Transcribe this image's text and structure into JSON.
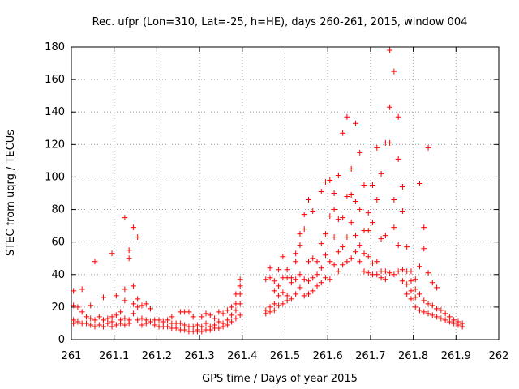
{
  "chart_data": {
    "type": "scatter",
    "title": "Rec. ufpr (Lon=310, Lat=-25, h=HE), days 260-261, 2015, window 004",
    "xlabel": "GPS time / Days of year 2015",
    "ylabel": "STEC from uqrg / TECUs",
    "xlim": [
      261,
      262
    ],
    "ylim": [
      0,
      180
    ],
    "xticks": [
      261,
      261.1,
      261.2,
      261.3,
      261.4,
      261.5,
      261.6,
      261.7,
      261.8,
      261.9,
      262
    ],
    "xtick_labels": [
      "261",
      "261.1",
      "261.2",
      "261.3",
      "261.4",
      "261.5",
      "261.6",
      "261.7",
      "261.8",
      "261.9",
      "262"
    ],
    "yticks": [
      0,
      20,
      40,
      60,
      80,
      100,
      120,
      140,
      160,
      180
    ],
    "ytick_labels": [
      "0",
      "20",
      "40",
      "60",
      "80",
      "100",
      "120",
      "140",
      "160",
      "180"
    ],
    "grid": true,
    "marker": "plus",
    "color": "#ff0000",
    "points": [
      [
        261.005,
        30
      ],
      [
        261.005,
        21
      ],
      [
        261.005,
        12
      ],
      [
        261.005,
        10
      ],
      [
        261.015,
        20
      ],
      [
        261.015,
        11
      ],
      [
        261.025,
        31
      ],
      [
        261.025,
        17
      ],
      [
        261.025,
        10
      ],
      [
        261.035,
        14
      ],
      [
        261.035,
        10
      ],
      [
        261.045,
        21
      ],
      [
        261.045,
        13
      ],
      [
        261.045,
        9
      ],
      [
        261.055,
        48
      ],
      [
        261.055,
        12
      ],
      [
        261.055,
        8
      ],
      [
        261.065,
        14
      ],
      [
        261.065,
        9
      ],
      [
        261.075,
        26
      ],
      [
        261.075,
        12
      ],
      [
        261.075,
        8
      ],
      [
        261.085,
        13
      ],
      [
        261.085,
        10
      ],
      [
        261.095,
        53
      ],
      [
        261.095,
        14
      ],
      [
        261.095,
        11
      ],
      [
        261.095,
        8
      ],
      [
        261.105,
        27
      ],
      [
        261.105,
        15
      ],
      [
        261.105,
        9
      ],
      [
        261.115,
        17
      ],
      [
        261.115,
        12
      ],
      [
        261.115,
        10
      ],
      [
        261.125,
        75
      ],
      [
        261.125,
        31
      ],
      [
        261.125,
        24
      ],
      [
        261.125,
        13
      ],
      [
        261.125,
        9
      ],
      [
        261.135,
        55
      ],
      [
        261.135,
        50
      ],
      [
        261.135,
        12
      ],
      [
        261.135,
        10
      ],
      [
        261.145,
        69
      ],
      [
        261.145,
        33
      ],
      [
        261.145,
        22
      ],
      [
        261.145,
        16
      ],
      [
        261.155,
        63
      ],
      [
        261.155,
        25
      ],
      [
        261.155,
        20
      ],
      [
        261.155,
        12
      ],
      [
        261.165,
        21
      ],
      [
        261.165,
        13
      ],
      [
        261.165,
        9
      ],
      [
        261.175,
        22
      ],
      [
        261.175,
        12
      ],
      [
        261.175,
        10
      ],
      [
        261.185,
        19
      ],
      [
        261.185,
        11
      ],
      [
        261.195,
        12
      ],
      [
        261.195,
        9
      ],
      [
        261.205,
        12
      ],
      [
        261.205,
        8
      ],
      [
        261.215,
        11
      ],
      [
        261.215,
        8
      ],
      [
        261.225,
        12
      ],
      [
        261.225,
        8
      ],
      [
        261.235,
        14
      ],
      [
        261.235,
        10
      ],
      [
        261.235,
        7
      ],
      [
        261.245,
        10
      ],
      [
        261.245,
        7
      ],
      [
        261.255,
        17
      ],
      [
        261.255,
        10
      ],
      [
        261.255,
        6
      ],
      [
        261.265,
        17
      ],
      [
        261.265,
        9
      ],
      [
        261.265,
        6
      ],
      [
        261.275,
        17
      ],
      [
        261.275,
        8
      ],
      [
        261.275,
        5
      ],
      [
        261.285,
        14
      ],
      [
        261.285,
        8
      ],
      [
        261.285,
        5
      ],
      [
        261.295,
        9
      ],
      [
        261.295,
        6
      ],
      [
        261.295,
        5
      ],
      [
        261.305,
        14
      ],
      [
        261.305,
        8
      ],
      [
        261.305,
        5
      ],
      [
        261.315,
        16
      ],
      [
        261.315,
        10
      ],
      [
        261.315,
        6
      ],
      [
        261.325,
        15
      ],
      [
        261.325,
        8
      ],
      [
        261.325,
        6
      ],
      [
        261.335,
        13
      ],
      [
        261.335,
        9
      ],
      [
        261.335,
        7
      ],
      [
        261.345,
        17
      ],
      [
        261.345,
        11
      ],
      [
        261.345,
        7
      ],
      [
        261.355,
        16
      ],
      [
        261.355,
        10
      ],
      [
        261.355,
        8
      ],
      [
        261.365,
        18
      ],
      [
        261.365,
        12
      ],
      [
        261.365,
        9
      ],
      [
        261.375,
        20
      ],
      [
        261.375,
        15
      ],
      [
        261.375,
        11
      ],
      [
        261.385,
        28
      ],
      [
        261.385,
        22
      ],
      [
        261.385,
        18
      ],
      [
        261.385,
        13
      ],
      [
        261.395,
        37
      ],
      [
        261.395,
        33
      ],
      [
        261.395,
        28
      ],
      [
        261.395,
        22
      ],
      [
        261.395,
        15
      ],
      [
        261.455,
        37
      ],
      [
        261.455,
        18
      ],
      [
        261.455,
        16
      ],
      [
        261.465,
        44
      ],
      [
        261.465,
        38
      ],
      [
        261.465,
        20
      ],
      [
        261.465,
        17
      ],
      [
        261.475,
        36
      ],
      [
        261.475,
        30
      ],
      [
        261.475,
        22
      ],
      [
        261.475,
        18
      ],
      [
        261.485,
        43
      ],
      [
        261.485,
        33
      ],
      [
        261.485,
        27
      ],
      [
        261.485,
        21
      ],
      [
        261.495,
        51
      ],
      [
        261.495,
        38
      ],
      [
        261.495,
        29
      ],
      [
        261.495,
        22
      ],
      [
        261.505,
        43
      ],
      [
        261.505,
        38
      ],
      [
        261.505,
        27
      ],
      [
        261.505,
        24
      ],
      [
        261.515,
        38
      ],
      [
        261.515,
        35
      ],
      [
        261.515,
        25
      ],
      [
        261.525,
        53
      ],
      [
        261.525,
        48
      ],
      [
        261.525,
        37
      ],
      [
        261.525,
        28
      ],
      [
        261.535,
        65
      ],
      [
        261.535,
        58
      ],
      [
        261.535,
        40
      ],
      [
        261.535,
        32
      ],
      [
        261.545,
        77
      ],
      [
        261.545,
        68
      ],
      [
        261.545,
        37
      ],
      [
        261.545,
        27
      ],
      [
        261.555,
        86
      ],
      [
        261.555,
        48
      ],
      [
        261.555,
        36
      ],
      [
        261.555,
        28
      ],
      [
        261.565,
        79
      ],
      [
        261.565,
        50
      ],
      [
        261.565,
        38
      ],
      [
        261.565,
        30
      ],
      [
        261.575,
        48
      ],
      [
        261.575,
        40
      ],
      [
        261.575,
        33
      ],
      [
        261.585,
        91
      ],
      [
        261.585,
        59
      ],
      [
        261.585,
        44
      ],
      [
        261.585,
        35
      ],
      [
        261.595,
        97
      ],
      [
        261.595,
        65
      ],
      [
        261.595,
        52
      ],
      [
        261.595,
        38
      ],
      [
        261.605,
        98
      ],
      [
        261.605,
        76
      ],
      [
        261.605,
        48
      ],
      [
        261.605,
        37
      ],
      [
        261.615,
        90
      ],
      [
        261.615,
        80
      ],
      [
        261.615,
        63
      ],
      [
        261.615,
        46
      ],
      [
        261.625,
        101
      ],
      [
        261.625,
        74
      ],
      [
        261.625,
        54
      ],
      [
        261.625,
        42
      ],
      [
        261.635,
        127
      ],
      [
        261.635,
        75
      ],
      [
        261.635,
        57
      ],
      [
        261.635,
        46
      ],
      [
        261.645,
        137
      ],
      [
        261.645,
        88
      ],
      [
        261.645,
        63
      ],
      [
        261.645,
        48
      ],
      [
        261.655,
        105
      ],
      [
        261.655,
        89
      ],
      [
        261.655,
        72
      ],
      [
        261.655,
        50
      ],
      [
        261.665,
        133
      ],
      [
        261.665,
        85
      ],
      [
        261.665,
        64
      ],
      [
        261.665,
        54
      ],
      [
        261.675,
        115
      ],
      [
        261.675,
        80
      ],
      [
        261.675,
        58
      ],
      [
        261.675,
        48
      ],
      [
        261.685,
        95
      ],
      [
        261.685,
        67
      ],
      [
        261.685,
        53
      ],
      [
        261.685,
        42
      ],
      [
        261.695,
        78
      ],
      [
        261.695,
        67
      ],
      [
        261.695,
        51
      ],
      [
        261.695,
        41
      ],
      [
        261.705,
        95
      ],
      [
        261.705,
        72
      ],
      [
        261.705,
        47
      ],
      [
        261.705,
        40
      ],
      [
        261.715,
        118
      ],
      [
        261.715,
        86
      ],
      [
        261.715,
        48
      ],
      [
        261.715,
        40
      ],
      [
        261.725,
        102
      ],
      [
        261.725,
        62
      ],
      [
        261.725,
        42
      ],
      [
        261.725,
        38
      ],
      [
        261.735,
        121
      ],
      [
        261.735,
        64
      ],
      [
        261.735,
        42
      ],
      [
        261.735,
        37
      ],
      [
        261.745,
        178
      ],
      [
        261.745,
        143
      ],
      [
        261.745,
        121
      ],
      [
        261.745,
        41
      ],
      [
        261.755,
        165
      ],
      [
        261.755,
        86
      ],
      [
        261.755,
        69
      ],
      [
        261.755,
        40
      ],
      [
        261.765,
        137
      ],
      [
        261.765,
        111
      ],
      [
        261.765,
        58
      ],
      [
        261.765,
        42
      ],
      [
        261.775,
        94
      ],
      [
        261.775,
        79
      ],
      [
        261.775,
        43
      ],
      [
        261.775,
        36
      ],
      [
        261.785,
        57
      ],
      [
        261.785,
        42
      ],
      [
        261.785,
        34
      ],
      [
        261.785,
        28
      ],
      [
        261.795,
        42
      ],
      [
        261.795,
        36
      ],
      [
        261.795,
        30
      ],
      [
        261.795,
        25
      ],
      [
        261.805,
        37
      ],
      [
        261.805,
        31
      ],
      [
        261.805,
        26
      ],
      [
        261.805,
        20
      ],
      [
        261.815,
        96
      ],
      [
        261.815,
        45
      ],
      [
        261.815,
        28
      ],
      [
        261.815,
        18
      ],
      [
        261.825,
        69
      ],
      [
        261.825,
        56
      ],
      [
        261.825,
        24
      ],
      [
        261.825,
        17
      ],
      [
        261.835,
        118
      ],
      [
        261.835,
        41
      ],
      [
        261.835,
        22
      ],
      [
        261.835,
        16
      ],
      [
        261.845,
        35
      ],
      [
        261.845,
        21
      ],
      [
        261.845,
        15
      ],
      [
        261.855,
        32
      ],
      [
        261.855,
        19
      ],
      [
        261.855,
        14
      ],
      [
        261.865,
        18
      ],
      [
        261.865,
        13
      ],
      [
        261.875,
        16
      ],
      [
        261.875,
        12
      ],
      [
        261.885,
        14
      ],
      [
        261.885,
        11
      ],
      [
        261.895,
        12
      ],
      [
        261.895,
        10
      ],
      [
        261.905,
        11
      ],
      [
        261.905,
        9
      ],
      [
        261.915,
        10
      ],
      [
        261.915,
        8
      ]
    ]
  }
}
